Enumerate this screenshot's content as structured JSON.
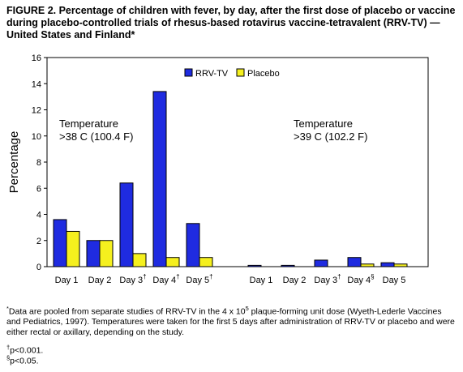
{
  "title": "FIGURE 2. Percentage of children with fever, by day, after the first dose of placebo or vaccine during placebo-controlled trials of rhesus-based rotavirus vaccine-tetravalent (RRV-TV) — United States and Finland*",
  "chart_data": {
    "type": "bar",
    "ylabel": "Percentage",
    "ylim": [
      0,
      16
    ],
    "yticks": [
      0,
      2,
      4,
      6,
      8,
      10,
      12,
      14,
      16
    ],
    "grid": false,
    "legend": {
      "position": "top",
      "entries": [
        {
          "name": "RRV-TV",
          "color": "#1f2be0"
        },
        {
          "name": "Placebo",
          "color": "#f5f01e"
        }
      ]
    },
    "annotations": [
      {
        "group": 0,
        "lines": [
          "Temperature",
          ">38 C (100.4 F)"
        ]
      },
      {
        "group": 1,
        "lines": [
          "Temperature",
          ">39 C (102.2 F)"
        ]
      }
    ],
    "groups": [
      {
        "name": "Temperature >38 C (100.4 F)",
        "categories": [
          {
            "label": "Day 1",
            "mark": ""
          },
          {
            "label": "Day 2",
            "mark": ""
          },
          {
            "label": "Day 3",
            "mark": "†"
          },
          {
            "label": "Day 4",
            "mark": "†"
          },
          {
            "label": "Day 5",
            "mark": "†"
          }
        ],
        "series": [
          {
            "name": "RRV-TV",
            "values": [
              3.6,
              2.0,
              6.4,
              13.4,
              3.3
            ]
          },
          {
            "name": "Placebo",
            "values": [
              2.7,
              2.0,
              1.0,
              0.7,
              0.7
            ]
          }
        ]
      },
      {
        "name": "Temperature >39 C (102.2 F)",
        "categories": [
          {
            "label": "Day 1",
            "mark": ""
          },
          {
            "label": "Day 2",
            "mark": ""
          },
          {
            "label": "Day 3",
            "mark": "†"
          },
          {
            "label": "Day 4",
            "mark": "§"
          },
          {
            "label": "Day 5",
            "mark": ""
          }
        ],
        "series": [
          {
            "name": "RRV-TV",
            "values": [
              0.1,
              0.1,
              0.5,
              0.7,
              0.3
            ]
          },
          {
            "name": "Placebo",
            "values": [
              0.0,
              0.0,
              0.0,
              0.2,
              0.2
            ]
          }
        ]
      }
    ]
  },
  "footnotes": {
    "data_note_mark": "*",
    "data_note_pre": "Data are pooled from separate studies of RRV-TV in the 4 x 10",
    "data_note_exp": "5",
    "data_note_post": " plaque-forming unit dose (Wyeth-Lederle Vaccines and Pediatrics, 1997). Temperatures were taken for the first 5 days after administration of RRV-TV or placebo and were either rectal or axillary, depending on the study.",
    "p1_mark": "†",
    "p1_text": "p<0.001.",
    "p2_mark": "§",
    "p2_text": "p<0.05."
  }
}
